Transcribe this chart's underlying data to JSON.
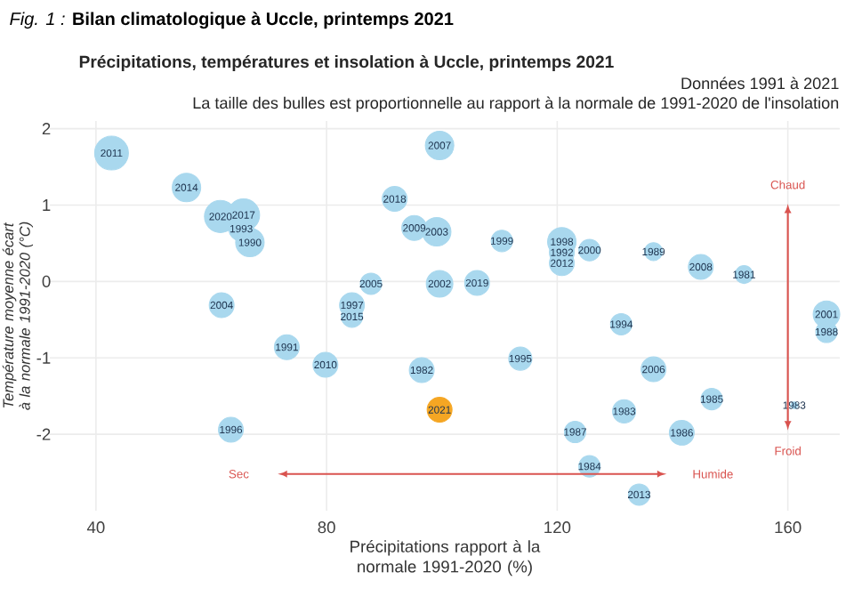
{
  "chart_data": {
    "type": "bubble",
    "title": "Précipitations, températures et insolation à Uccle, printemps 2021",
    "subtitle": "Données 1991 à 2021",
    "xlabel": "Précipitations rapport à la normale 1991-2020 (%)",
    "ylabel": "Température moyenne écart à la normale 1991-2020 (°C)",
    "annotations": [
      "*Fig. 1 :* **Bilan climatologique à Uccle, printemps 2021**",
      "La taille des bulles est proportionnelle au rapport à la normale de 1991-2020 de l'insolation",
      "Sec",
      "Humide",
      "Chaud",
      "Froid",
      {
        "text": "2011",
        "x": 42.7,
        "y": 1.68
      },
      {
        "text": "2014",
        "x": 55.7,
        "y": 1.23
      },
      {
        "text": "2020",
        "x": 61.6,
        "y": 0.85
      },
      {
        "text": "2017",
        "x": 65.6,
        "y": 0.87
      },
      {
        "text": "1993",
        "x": 65.2,
        "y": 0.69
      },
      {
        "text": "1990",
        "x": 66.7,
        "y": 0.51
      },
      {
        "text": "2004",
        "x": 61.8,
        "y": -0.31
      },
      {
        "text": "1991",
        "x": 73.1,
        "y": -0.86
      },
      {
        "text": "1996",
        "x": 63.4,
        "y": -1.94
      },
      {
        "text": "2007",
        "x": 99.6,
        "y": 1.78
      },
      {
        "text": "2018",
        "x": 91.8,
        "y": 1.08
      },
      {
        "text": "2009",
        "x": 95.2,
        "y": 0.7
      },
      {
        "text": "2003",
        "x": 99.1,
        "y": 0.65
      },
      {
        "text": "1999",
        "x": 110.4,
        "y": 0.53
      },
      {
        "text": "1998",
        "x": 120.8,
        "y": 0.52
      },
      {
        "text": "1992",
        "x": 120.8,
        "y": 0.38
      },
      {
        "text": "2012",
        "x": 120.8,
        "y": 0.24
      },
      {
        "text": "2000",
        "x": 125.6,
        "y": 0.41
      },
      {
        "text": "2005",
        "x": 87.7,
        "y": -0.03
      },
      {
        "text": "2002",
        "x": 99.6,
        "y": -0.03
      },
      {
        "text": "2019",
        "x": 106.1,
        "y": -0.02
      },
      {
        "text": "1997",
        "x": 84.4,
        "y": -0.31
      },
      {
        "text": "2015",
        "x": 84.4,
        "y": -0.46
      },
      {
        "text": "2010",
        "x": 79.8,
        "y": -1.09
      },
      {
        "text": "1982",
        "x": 96.5,
        "y": -1.16
      },
      {
        "text": "1995",
        "x": 113.6,
        "y": -1.01
      },
      {
        "text": "1987",
        "x": 123.1,
        "y": -1.97
      },
      {
        "text": "1989",
        "x": 136.7,
        "y": 0.39
      },
      {
        "text": "2008",
        "x": 144.9,
        "y": 0.19
      },
      {
        "text": "1981",
        "x": 152.4,
        "y": 0.09
      },
      {
        "text": "1994",
        "x": 131.1,
        "y": -0.56
      },
      {
        "text": "2001",
        "x": 166.7,
        "y": -0.43
      },
      {
        "text": "1988",
        "x": 166.7,
        "y": -0.66
      },
      {
        "text": "2006",
        "x": 136.7,
        "y": -1.15
      },
      {
        "text": "1985",
        "x": 146.8,
        "y": -1.54
      },
      {
        "text": "1983",
        "x": 131.6,
        "y": -1.7
      },
      {
        "text": "1983",
        "x": 161.1,
        "y": -1.62
      },
      {
        "text": "1986",
        "x": 141.6,
        "y": -1.98
      },
      {
        "text": "1984",
        "x": 125.6,
        "y": -2.42
      },
      {
        "text": "2013",
        "x": 134.2,
        "y": -2.79
      },
      {
        "text": "2021",
        "x": 99.6,
        "y": -1.68
      }
    ],
    "xlim": [
      32,
      169
    ],
    "xticks": [
      40,
      80,
      120,
      160
    ],
    "ylim": [
      -3,
      2.1
    ],
    "yticks": [
      -2,
      -1,
      0,
      1,
      2
    ],
    "grid": true,
    "series": [
      {
        "color": "#a9d8ee",
        "x": [
          42.7,
          55.7,
          61.6,
          65.6,
          65.2,
          66.7,
          61.8,
          73.1,
          63.4,
          99.6,
          91.8,
          95.2,
          99.1,
          110.4,
          120.8,
          120.8,
          120.8,
          125.6,
          87.7,
          99.6,
          106.1,
          84.4,
          84.4,
          79.8,
          96.5,
          113.6,
          123.1,
          136.7,
          144.9,
          152.4,
          131.1,
          166.7,
          166.7,
          136.7,
          146.8,
          131.6,
          161.1,
          141.6,
          125.6,
          134.2
        ],
        "values": [
          1.68,
          1.23,
          0.85,
          0.87,
          0.69,
          0.51,
          -0.31,
          -0.86,
          -1.94,
          1.78,
          1.08,
          0.7,
          0.65,
          0.53,
          0.52,
          0.38,
          0.24,
          0.41,
          -0.03,
          -0.03,
          -0.02,
          -0.31,
          -0.46,
          -1.09,
          -1.16,
          -1.01,
          -1.97,
          0.39,
          0.19,
          0.09,
          -0.56,
          -0.43,
          -0.66,
          -1.15,
          -1.54,
          -1.7,
          -1.62,
          -1.98,
          -2.42,
          -2.79
        ],
        "sizes": [
          1.0,
          0.71,
          0.9,
          0.9,
          0.54,
          0.71,
          0.54,
          0.54,
          0.54,
          0.71,
          0.54,
          0.54,
          0.71,
          0.4,
          0.71,
          0.54,
          0.54,
          0.4,
          0.4,
          0.62,
          0.54,
          0.54,
          0.4,
          0.54,
          0.54,
          0.47,
          0.4,
          0.28,
          0.54,
          0.28,
          0.4,
          0.62,
          0.4,
          0.54,
          0.4,
          0.47,
          0.04,
          0.54,
          0.4,
          0.4
        ]
      },
      {
        "color": "#f5a623",
        "x": [
          99.6
        ],
        "values": [
          -1.68
        ],
        "sizes": [
          0.54
        ]
      }
    ]
  }
}
